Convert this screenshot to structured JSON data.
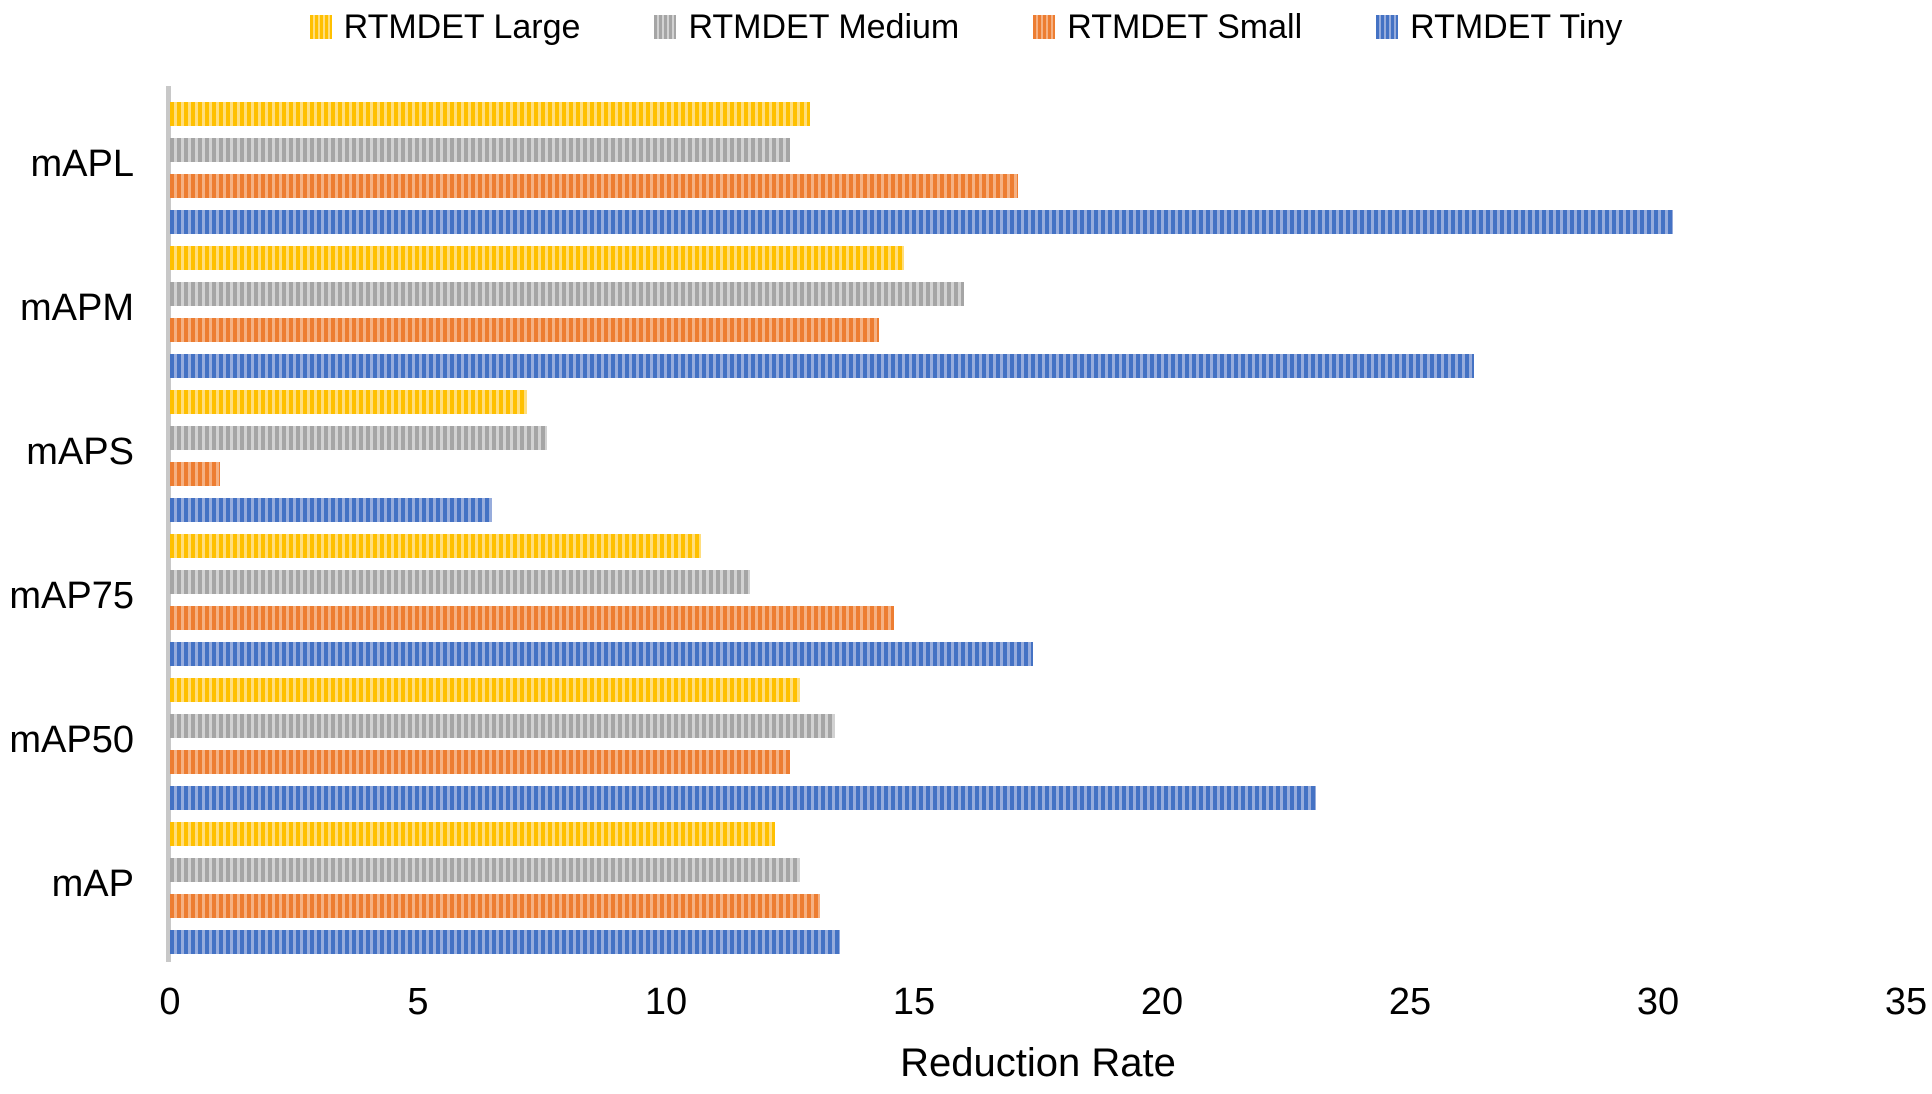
{
  "chart_data": {
    "type": "bar",
    "orientation": "horizontal",
    "title": "",
    "xlabel": "Reduction Rate",
    "categories": [
      "mAPL",
      "mAPM",
      "mAPS",
      "mAP75",
      "mAP50",
      "mAP"
    ],
    "series": [
      {
        "name": "RTMDET Large",
        "color": "#FFC000",
        "tint": "#FFDE7E",
        "values": [
          12.9,
          14.8,
          7.2,
          10.7,
          12.7,
          12.2
        ]
      },
      {
        "name": "RTMDET Medium",
        "color": "#A5A5A5",
        "tint": "#D2D2D2",
        "values": [
          12.5,
          16.0,
          7.6,
          11.7,
          13.4,
          12.7
        ]
      },
      {
        "name": "RTMDET Small",
        "color": "#ED7D31",
        "tint": "#F5B183",
        "values": [
          17.1,
          14.3,
          1.0,
          14.6,
          12.5,
          13.1
        ]
      },
      {
        "name": "RTMDET Tiny",
        "color": "#4472C4",
        "tint": "#97ACDC",
        "values": [
          30.3,
          26.3,
          6.5,
          17.4,
          23.1,
          13.5
        ]
      }
    ],
    "xlim": [
      0,
      35
    ],
    "xticks": [
      0,
      5,
      10,
      15,
      20,
      25,
      30,
      35
    ],
    "legend_position": "top",
    "grid": false,
    "axis_line_color": "#c8c8c8",
    "pattern_fill": "vertical-stripes"
  }
}
